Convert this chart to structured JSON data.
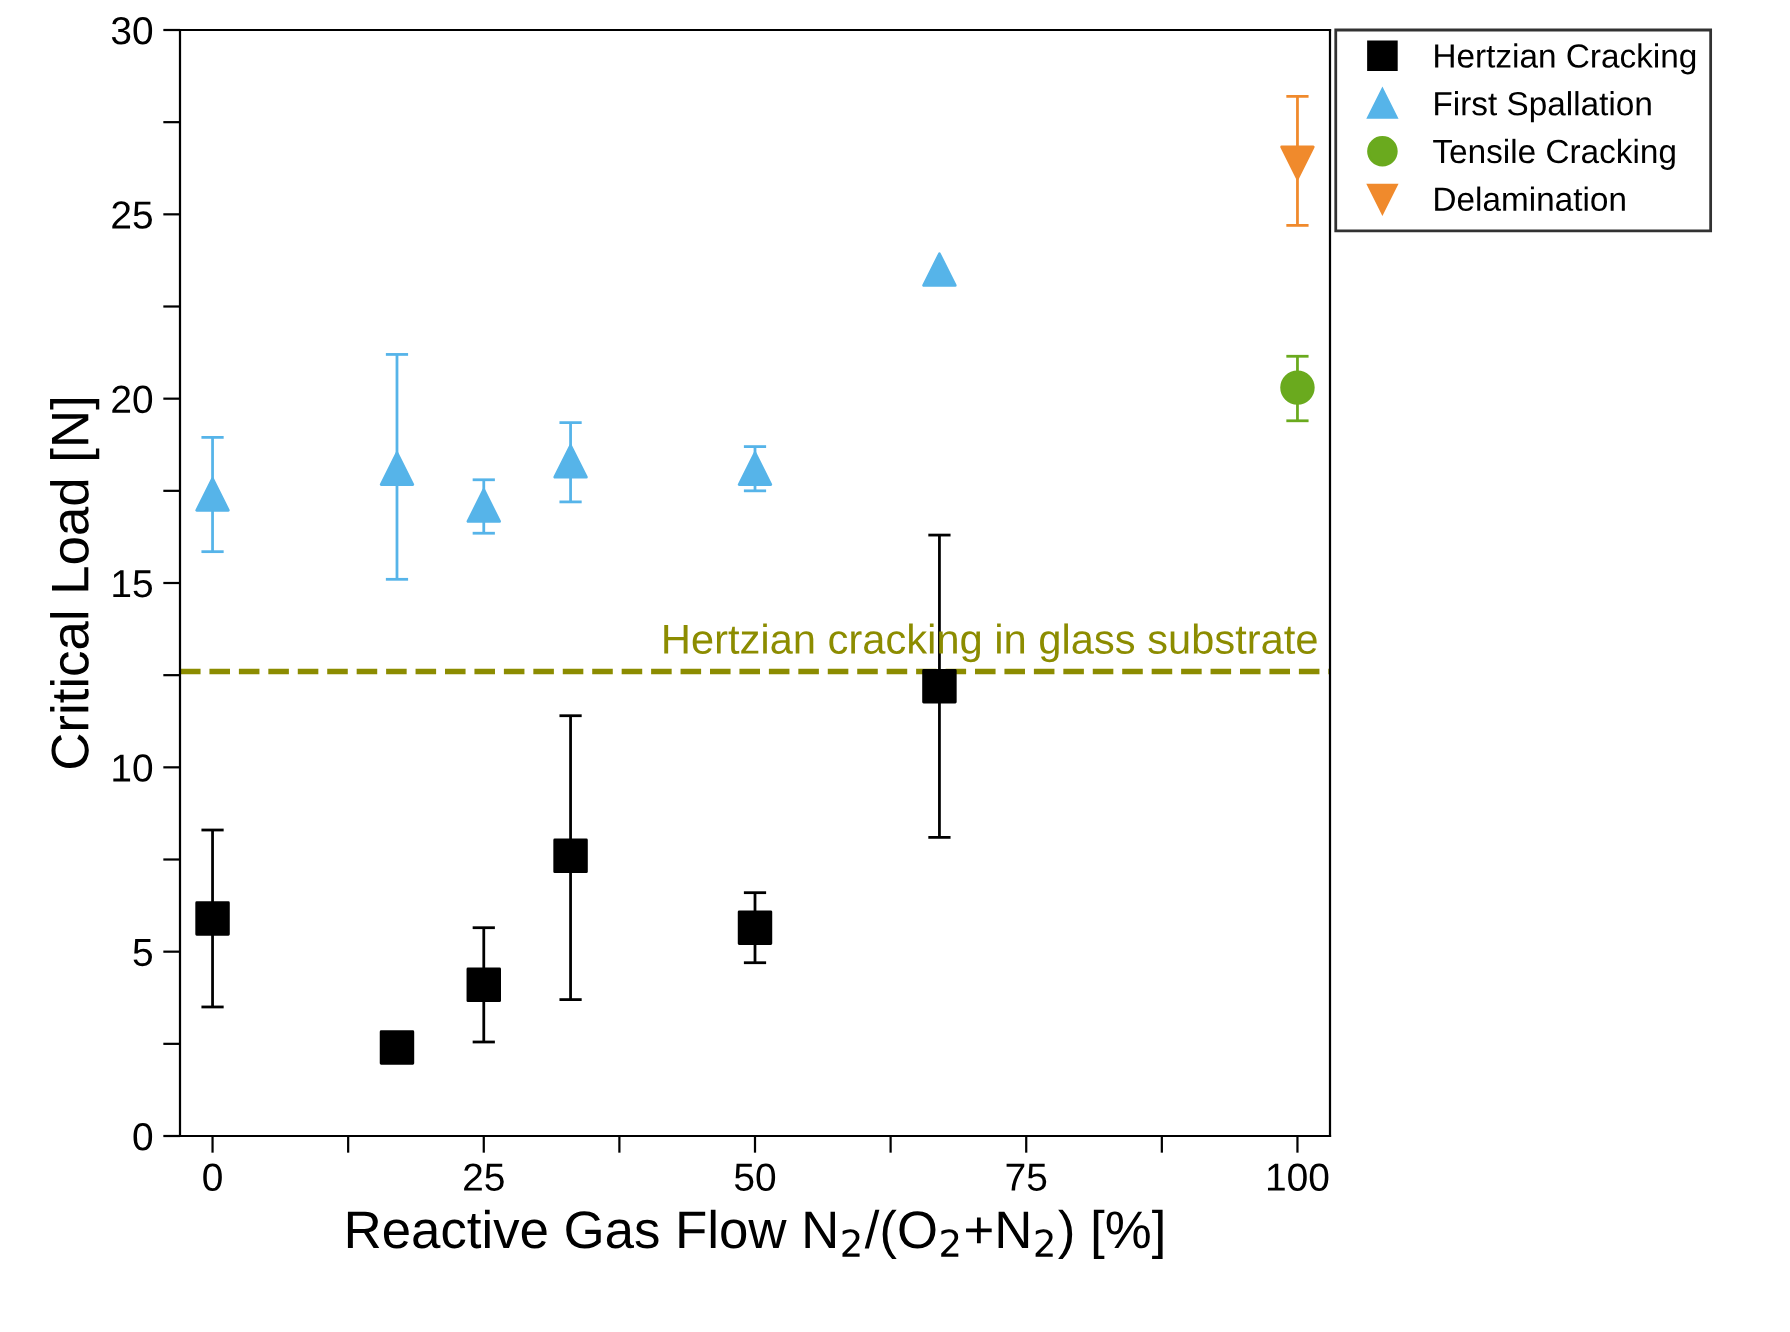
{
  "chart_data": {
    "type": "scatter",
    "xlabel": "Reactive Gas Flow N$_{2}$/(O$_{2}$+N$_{2}$) [%]",
    "ylabel": "Critical Load [N]",
    "xlim": [
      -3,
      103
    ],
    "ylim": [
      0,
      30
    ],
    "xticks": [
      0,
      {
        "value": 12.5,
        "label": null
      },
      25,
      {
        "value": 37.5,
        "label": null
      },
      50,
      {
        "value": 62.5,
        "label": null
      },
      75,
      {
        "value": 87.5,
        "label": null
      },
      100
    ],
    "yticks": [
      0,
      {
        "value": 2.5,
        "label": null
      },
      5,
      {
        "value": 7.5,
        "label": null
      },
      10,
      {
        "value": 12.5,
        "label": null
      },
      15,
      {
        "value": 17.5,
        "label": null
      },
      20,
      {
        "value": 22.5,
        "label": null
      },
      25,
      {
        "value": 27.5,
        "label": null
      },
      30
    ],
    "grid": false,
    "legend": "top right",
    "series": [
      {
        "name": "Hertzian Cracking",
        "color": "#000000",
        "marker": "square",
        "x": [
          0,
          17,
          25,
          33,
          50,
          67
        ],
        "values": [
          5.9,
          2.4,
          4.1,
          7.6,
          5.65,
          12.2
        ],
        "errors": [
          [
            3.5,
            8.3
          ],
          null,
          [
            2.55,
            5.65
          ],
          [
            3.7,
            11.4
          ],
          [
            4.7,
            6.6
          ],
          [
            8.1,
            16.3
          ]
        ]
      },
      {
        "name": "First Spallation",
        "color": "#56b4e9",
        "marker": "triangle",
        "x": [
          0,
          17,
          25,
          33,
          50,
          67
        ],
        "values": [
          17.4,
          18.1,
          17.1,
          18.3,
          18.1,
          23.5
        ],
        "errors": [
          [
            15.85,
            18.95
          ],
          [
            15.1,
            21.2
          ],
          [
            16.35,
            17.8
          ],
          [
            17.2,
            19.35
          ],
          [
            17.5,
            18.7
          ],
          null
        ]
      },
      {
        "name": "Tensile Cracking",
        "color": "#6aaa1e",
        "marker": "circle",
        "x": [
          100
        ],
        "values": [
          20.3
        ],
        "errors": [
          [
            19.4,
            21.15
          ]
        ]
      },
      {
        "name": "Delamination",
        "color": "#f08a2c",
        "marker": "triangle_down",
        "x": [
          100
        ],
        "values": [
          26.4
        ],
        "errors": [
          [
            24.7,
            28.2
          ]
        ]
      }
    ],
    "ref_lines": [
      {
        "axis": "y",
        "value": 12.6,
        "label": "Hertzian cracking in glass substrate",
        "color": "#8c8c00",
        "line_style": "dashed"
      }
    ]
  }
}
